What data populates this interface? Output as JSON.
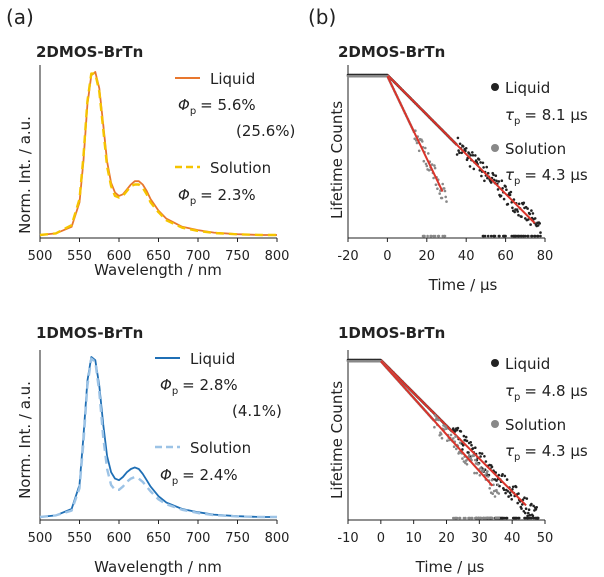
{
  "panels": {
    "a": "(a)",
    "b": "(b)"
  },
  "chart_data": [
    {
      "id": "a-top",
      "type": "line",
      "title": "2DMOS-BrTn",
      "xlabel": "Wavelength / nm",
      "ylabel": "Norm. Int. / a.u.",
      "xlim": [
        500,
        800
      ],
      "xticks": [
        "500",
        "550",
        "600",
        "650",
        "700",
        "750",
        "800"
      ],
      "ylim": [
        0,
        1
      ],
      "series": [
        {
          "name": "Liquid",
          "color": "#e8772e",
          "dash": false,
          "x": [
            500,
            520,
            540,
            550,
            555,
            560,
            565,
            570,
            575,
            580,
            585,
            590,
            595,
            600,
            605,
            610,
            615,
            620,
            625,
            630,
            635,
            640,
            650,
            660,
            680,
            700,
            720,
            750,
            780,
            800
          ],
          "y": [
            0.0,
            0.01,
            0.05,
            0.2,
            0.45,
            0.8,
            0.98,
            1.0,
            0.9,
            0.68,
            0.45,
            0.32,
            0.26,
            0.24,
            0.25,
            0.28,
            0.31,
            0.33,
            0.33,
            0.31,
            0.27,
            0.22,
            0.15,
            0.1,
            0.05,
            0.03,
            0.015,
            0.005,
            0.0,
            0.0
          ]
        },
        {
          "name": "Solution",
          "color": "#f5c400",
          "dash": true,
          "x": [
            500,
            520,
            540,
            550,
            555,
            560,
            565,
            570,
            575,
            580,
            585,
            590,
            595,
            600,
            605,
            610,
            615,
            620,
            625,
            630,
            635,
            640,
            650,
            660,
            680,
            700,
            720,
            750,
            780,
            800
          ],
          "y": [
            0.0,
            0.01,
            0.06,
            0.22,
            0.48,
            0.82,
            0.99,
            0.99,
            0.88,
            0.65,
            0.42,
            0.3,
            0.24,
            0.23,
            0.24,
            0.27,
            0.3,
            0.31,
            0.31,
            0.29,
            0.25,
            0.2,
            0.14,
            0.09,
            0.045,
            0.025,
            0.012,
            0.004,
            0.0,
            0.0
          ]
        }
      ],
      "legend": [
        {
          "label": "Liquid",
          "phi": "= 5.6%",
          "note": "(25.6%)"
        },
        {
          "label": "Solution",
          "phi": "= 2.3%",
          "note": ""
        }
      ]
    },
    {
      "id": "b-top",
      "type": "scatter",
      "title": "2DMOS-BrTn",
      "xlabel": "Time / μs",
      "ylabel": "Lifetime Counts",
      "xlim": [
        -20,
        80
      ],
      "xticks": [
        "-20",
        "0",
        "20",
        "40",
        "60",
        "80"
      ],
      "yscale": "log",
      "series": [
        {
          "name": "Liquid",
          "color": "#222222",
          "plateau": 1.0,
          "t0": 0,
          "end": 78,
          "decay": 0.0123
        },
        {
          "name": "Solution",
          "color": "#888888",
          "plateau": 0.95,
          "t0": 0,
          "end": 30,
          "decay": 0.0256
        }
      ],
      "legend": [
        {
          "label": "Liquid",
          "tau": "= 8.1 μs"
        },
        {
          "label": "Solution",
          "tau": "= 4.3 μs"
        }
      ]
    },
    {
      "id": "a-bottom",
      "type": "line",
      "title": "1DMOS-BrTn",
      "xlabel": "Wavelength / nm",
      "ylabel": "Norm. Int. / a.u.",
      "xlim": [
        500,
        800
      ],
      "xticks": [
        "500",
        "550",
        "600",
        "650",
        "700",
        "750",
        "800"
      ],
      "ylim": [
        0,
        1
      ],
      "series": [
        {
          "name": "Liquid",
          "color": "#1f6fb5",
          "dash": false,
          "x": [
            500,
            520,
            540,
            550,
            555,
            560,
            565,
            570,
            575,
            580,
            585,
            590,
            595,
            600,
            605,
            610,
            615,
            620,
            625,
            630,
            635,
            640,
            650,
            660,
            680,
            700,
            720,
            750,
            780,
            800
          ],
          "y": [
            0.0,
            0.01,
            0.05,
            0.2,
            0.5,
            0.85,
            1.0,
            0.98,
            0.82,
            0.58,
            0.38,
            0.28,
            0.24,
            0.23,
            0.25,
            0.28,
            0.3,
            0.31,
            0.3,
            0.27,
            0.23,
            0.19,
            0.13,
            0.09,
            0.05,
            0.03,
            0.015,
            0.005,
            0.0,
            0.0
          ]
        },
        {
          "name": "Solution",
          "color": "#9cc3e6",
          "dash": true,
          "x": [
            500,
            520,
            540,
            550,
            555,
            560,
            565,
            570,
            575,
            580,
            585,
            590,
            595,
            600,
            605,
            610,
            615,
            620,
            625,
            630,
            635,
            640,
            650,
            660,
            680,
            700,
            720,
            750,
            780,
            800
          ],
          "y": [
            0.0,
            0.01,
            0.04,
            0.18,
            0.46,
            0.82,
            0.99,
            0.97,
            0.78,
            0.5,
            0.3,
            0.2,
            0.17,
            0.17,
            0.19,
            0.22,
            0.24,
            0.25,
            0.24,
            0.22,
            0.19,
            0.16,
            0.11,
            0.08,
            0.045,
            0.025,
            0.012,
            0.004,
            0.0,
            0.0
          ]
        }
      ],
      "legend": [
        {
          "label": "Liquid",
          "phi": "= 2.8%",
          "note": "(4.1%)"
        },
        {
          "label": "Solution",
          "phi": "= 2.4%",
          "note": ""
        }
      ]
    },
    {
      "id": "b-bottom",
      "type": "scatter",
      "title": "1DMOS-BrTn",
      "xlabel": "Time / μs",
      "ylabel": "Lifetime Counts",
      "xlim": [
        -10,
        50
      ],
      "xticks": [
        "-10",
        "0",
        "10",
        "20",
        "30",
        "40",
        "50"
      ],
      "yscale": "log",
      "series": [
        {
          "name": "Liquid",
          "color": "#222222",
          "plateau": 1.0,
          "t0": 0,
          "end": 48,
          "decay": 0.0208
        },
        {
          "name": "Solution",
          "color": "#888888",
          "plateau": 0.95,
          "t0": 0,
          "end": 36,
          "decay": 0.0232
        }
      ],
      "legend": [
        {
          "label": "Liquid",
          "tau": "= 4.8 μs"
        },
        {
          "label": "Solution",
          "tau": "= 4.3 μs"
        }
      ]
    }
  ]
}
